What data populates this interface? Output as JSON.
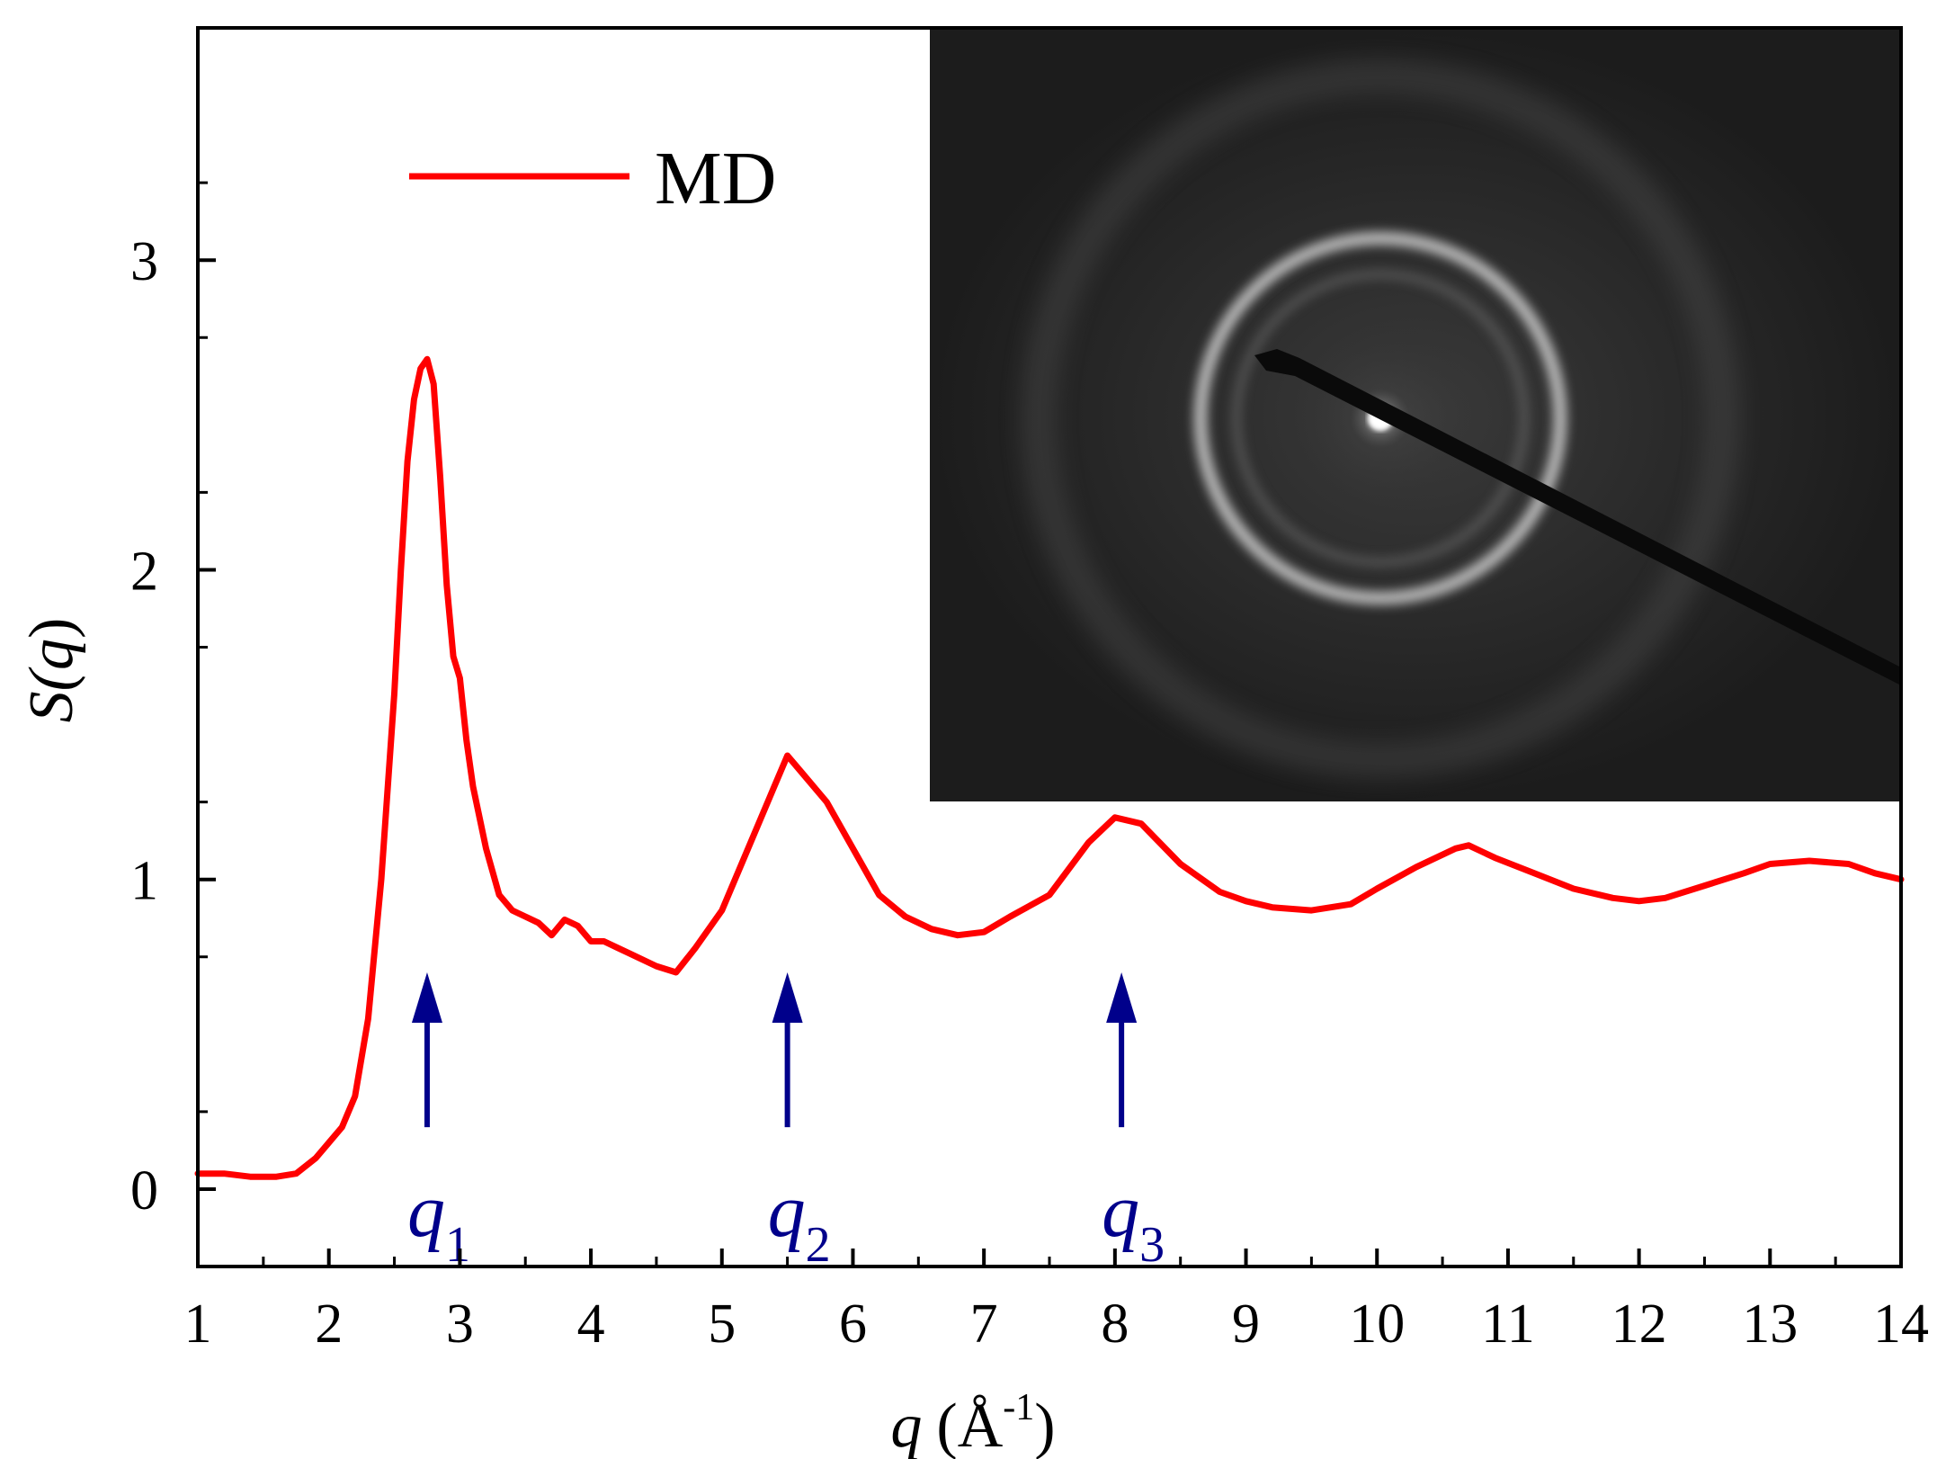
{
  "chart_data": {
    "type": "line",
    "xlabel": {
      "symbol": "q",
      "unit": "(Å",
      "exp": "-1",
      "close": ")"
    },
    "ylabel": {
      "prefix": "S(",
      "symbol": "q",
      "suffix": ")"
    },
    "xlim": [
      1,
      14
    ],
    "ylim": [
      -0.25,
      3.75
    ],
    "xticks": [
      1,
      2,
      3,
      4,
      5,
      6,
      7,
      8,
      9,
      10,
      11,
      12,
      13,
      14
    ],
    "xtick_labels": [
      "1",
      "2",
      "3",
      "4",
      "5",
      "6",
      "7",
      "8",
      "9",
      "10",
      "11",
      "12",
      "13",
      "14"
    ],
    "yticks": [
      0,
      1,
      2,
      3
    ],
    "ytick_labels": [
      "0",
      "1",
      "2",
      "3"
    ],
    "x_minor_step": 0.5,
    "y_minor_step": 0.5,
    "series": [
      {
        "name": "MD",
        "color": "#ff0000",
        "x": [
          1.0,
          1.2,
          1.4,
          1.5,
          1.6,
          1.75,
          1.9,
          2.0,
          2.1,
          2.2,
          2.3,
          2.4,
          2.5,
          2.55,
          2.6,
          2.65,
          2.7,
          2.75,
          2.8,
          2.85,
          2.9,
          2.95,
          3.0,
          3.05,
          3.1,
          3.2,
          3.3,
          3.4,
          3.5,
          3.6,
          3.7,
          3.8,
          3.9,
          4.0,
          4.1,
          4.2,
          4.3,
          4.5,
          4.65,
          4.8,
          5.0,
          5.2,
          5.4,
          5.5,
          5.6,
          5.8,
          6.0,
          6.2,
          6.4,
          6.6,
          6.8,
          7.0,
          7.2,
          7.5,
          7.8,
          8.0,
          8.2,
          8.5,
          8.8,
          9.0,
          9.2,
          9.5,
          9.8,
          10.0,
          10.3,
          10.6,
          10.7,
          10.9,
          11.2,
          11.5,
          11.8,
          12.0,
          12.2,
          12.5,
          12.8,
          13.0,
          13.3,
          13.6,
          13.8,
          14.0
        ],
        "y": [
          0.05,
          0.05,
          0.04,
          0.04,
          0.04,
          0.05,
          0.1,
          0.15,
          0.2,
          0.3,
          0.55,
          1.0,
          1.6,
          2.0,
          2.35,
          2.55,
          2.65,
          2.68,
          2.6,
          2.3,
          1.95,
          1.72,
          1.65,
          1.45,
          1.3,
          1.1,
          0.95,
          0.9,
          0.88,
          0.86,
          0.82,
          0.87,
          0.85,
          0.8,
          0.8,
          0.78,
          0.76,
          0.72,
          0.7,
          0.78,
          0.9,
          1.1,
          1.3,
          1.4,
          1.35,
          1.25,
          1.1,
          0.95,
          0.88,
          0.84,
          0.82,
          0.83,
          0.88,
          0.95,
          1.12,
          1.2,
          1.18,
          1.05,
          0.96,
          0.93,
          0.91,
          0.9,
          0.92,
          0.97,
          1.04,
          1.1,
          1.11,
          1.07,
          1.02,
          0.97,
          0.94,
          0.93,
          0.94,
          0.98,
          1.02,
          1.05,
          1.06,
          1.05,
          1.02,
          1.0
        ]
      }
    ],
    "legend": {
      "label": "MD",
      "position": "top-left"
    },
    "annotations": [
      {
        "symbol": "q",
        "sub": "1",
        "x": 2.75,
        "y_tip": 0.7,
        "y_tail": 0.2,
        "color": "#00008b"
      },
      {
        "symbol": "q",
        "sub": "2",
        "x": 5.5,
        "y_tip": 0.7,
        "y_tail": 0.2,
        "color": "#00008b"
      },
      {
        "symbol": "q",
        "sub": "3",
        "x": 8.05,
        "y_tip": 0.7,
        "y_tail": 0.2,
        "color": "#00008b"
      }
    ],
    "inset": {
      "kind": "electron diffraction pattern",
      "position": "top-right"
    }
  }
}
